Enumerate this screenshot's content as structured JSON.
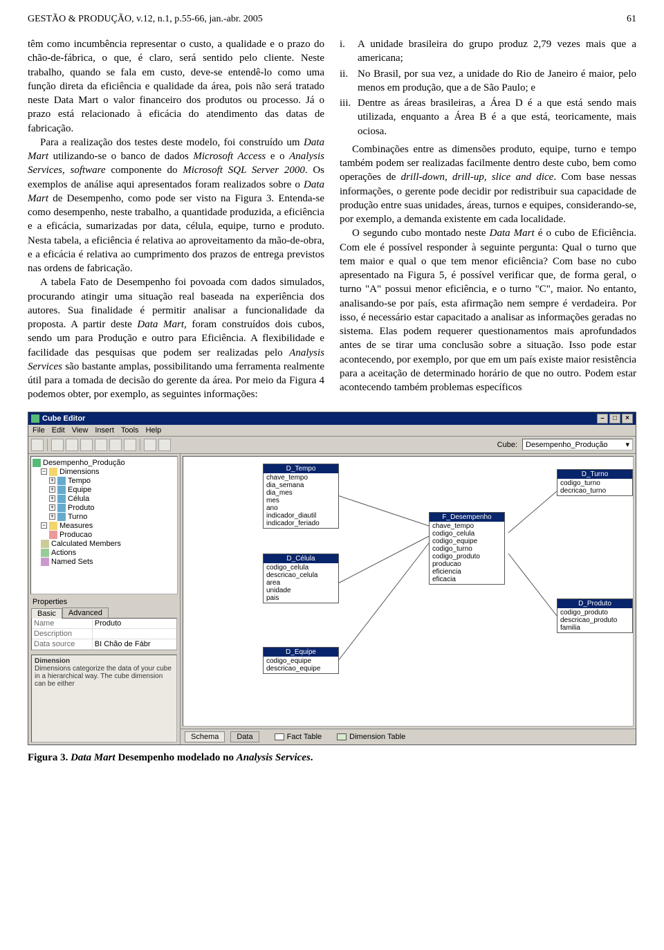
{
  "header": {
    "journal": "GESTÃO & PRODUÇÃO, v.12, n.1, p.55-66, jan.-abr. 2005",
    "page": "61"
  },
  "left_col": {
    "p1": "têm como incumbência representar o custo, a qualidade e o prazo do chão-de-fábrica, o que, é claro, será sentido pelo cliente. Neste trabalho, quando se fala em custo, deve-se entendê-lo como uma função direta da eficiência e qualidade da área, pois não será tratado neste Data Mart o valor financeiro dos produtos ou processo. Já o prazo está relacionado à eficácia do atendimento das datas de fabricação.",
    "p2a": "Para a realização dos testes deste modelo, foi construído um ",
    "p2b": " utilizando-se o banco de dados ",
    "p2c": " e o ",
    "p2d": " componente do ",
    "p2e": ". Os exemplos de análise aqui apresentados foram realizados sobre o ",
    "p2f": " de Desempenho, como pode ser visto na Figura 3. Entenda-se como desempenho, neste trabalho, a quantidade produzida, a eficiência e a eficácia, sumarizadas por data, célula, equipe, turno e produto. Nesta tabela, a eficiência é relativa ao aproveitamento da mão-de-obra, e a eficácia é relativa ao cumprimento dos prazos de entrega previstos nas ordens de fabricação.",
    "it_dm": "Data Mart",
    "it_access": "Microsoft Access",
    "it_as": "Analysis Services, software",
    "it_sql": "Microsoft SQL Server 2000",
    "p3a": "A tabela Fato de Desempenho foi povoada com dados simulados, procurando atingir uma situação real baseada na experiência dos autores. Sua finalidade é permitir analisar a funcionalidade da proposta. A partir deste ",
    "p3b": " foram construídos dois cubos, sendo um para Produção e outro para Eficiência. A flexibilidade e facilidade das pesquisas que podem ser realizadas pelo ",
    "p3c": " são bastante amplas, possibilitando uma ferramenta realmente útil para a tomada de decisão do gerente da área. Por meio da Figura 4 podemos obter, por exemplo, as seguintes informações:",
    "it_dm2": "Data Mart,",
    "it_services": "Analysis Services"
  },
  "right_col": {
    "i_marker": "i.",
    "i_text": "A unidade brasileira do grupo produz 2,79 vezes mais que a americana;",
    "ii_marker": "ii.",
    "ii_text": "No Brasil, por sua vez, a unidade do Rio de Janeiro é maior, pelo menos em produção, que a de São Paulo; e",
    "iii_marker": "iii.",
    "iii_text": "Dentre as áreas brasileiras, a Área D é a que está sendo mais utilizada, enquanto a Área B é a que está, teoricamente, mais ociosa.",
    "p1a": "Combinações entre as dimensões produto, equipe, turno e tempo também podem ser realizadas facilmente dentro deste cubo, bem como operações de ",
    "it_ops": "drill-down, drill-up, slice and dice",
    "p1b": ". Com base nessas informações, o gerente pode decidir por redistribuir sua capacidade de produção entre suas unidades, áreas, turnos e equipes, considerando-se, por exemplo, a demanda existente em cada localidade.",
    "p2a": "O segundo cubo montado neste ",
    "it_dm": "Data Mart",
    "p2b": " é o cubo de Eficiência. Com ele é possível responder à seguinte pergunta: Qual o turno que tem maior e qual o que tem menor eficiência? Com base no cubo apresentado na Figura 5, é possível verificar que, de forma geral, o turno \"A\" possui menor eficiência, e o turno \"C\", maior. No entanto, analisando-se por país, esta afirmação nem sempre é verdadeira. Por isso, é necessário estar capacitado a analisar as informações geradas no sistema. Elas podem requerer questionamentos mais aprofundados antes de se tirar uma conclusão sobre a situação. Isso pode estar acontecendo, por exemplo, por que em um país existe maior resistência para a aceitação de determinado horário de que no outro. Podem estar acontecendo também problemas específicos"
  },
  "editor": {
    "title": "Cube Editor",
    "menus": [
      "File",
      "Edit",
      "View",
      "Insert",
      "Tools",
      "Help"
    ],
    "cube_label": "Cube:",
    "cube_value": "Desempenho_Produção",
    "tree": {
      "root": "Desempenho_Produção",
      "dimensions_label": "Dimensions",
      "dims": [
        "Tempo",
        "Equipe",
        "Célula",
        "Produto",
        "Turno"
      ],
      "measures_label": "Measures",
      "measures": [
        "Producao"
      ],
      "other": [
        "Calculated Members",
        "Actions",
        "Named Sets"
      ]
    },
    "properties": {
      "label": "Properties",
      "tabs": [
        "Basic",
        "Advanced"
      ],
      "rows": [
        {
          "name": "Name",
          "value": "Produto"
        },
        {
          "name": "Description",
          "value": ""
        },
        {
          "name": "Data source",
          "value": "BI Chão de Fábr"
        }
      ]
    },
    "help": {
      "title": "Dimension",
      "text": "Dimensions categorize the data of your cube in a hierarchical way. The cube dimension can be either"
    },
    "tables": {
      "d_tempo": {
        "title": "D_Tempo",
        "fields": [
          "chave_tempo",
          "dia_semana",
          "dia_mes",
          "mes",
          "ano",
          "indicador_diautil",
          "indicador_feriado"
        ]
      },
      "d_celula": {
        "title": "D_Célula",
        "fields": [
          "codigo_celula",
          "descricao_celula",
          "area",
          "unidade",
          "pais"
        ]
      },
      "d_equipe": {
        "title": "D_Equipe",
        "fields": [
          "codigo_equipe",
          "descricao_equipe"
        ]
      },
      "f_desempenho": {
        "title": "F_Desempenho",
        "fields": [
          "chave_tempo",
          "codigo_celula",
          "codigo_equipe",
          "codigo_turno",
          "codigo_produto",
          "producao",
          "eficiencia",
          "eficacia"
        ]
      },
      "d_turno": {
        "title": "D_Turno",
        "fields": [
          "codigo_turno",
          "decricao_turno"
        ]
      },
      "d_produto": {
        "title": "D_Produto",
        "fields": [
          "codigo_produto",
          "descricao_produto",
          "familia"
        ]
      }
    },
    "bottom": {
      "tabs": [
        "Schema",
        "Data"
      ],
      "legend_fact": "Fact Table",
      "legend_dim": "Dimension Table"
    },
    "colors": {
      "titlebar_bg": "#08246b",
      "window_bg": "#d4d0c8",
      "canvas_bg": "#ffffff",
      "border": "#555555"
    }
  },
  "caption": {
    "label": "Figura 3. ",
    "it": "Data Mart",
    "rest": " Desempenho modelado no ",
    "it2": "Analysis Services",
    "end": "."
  }
}
